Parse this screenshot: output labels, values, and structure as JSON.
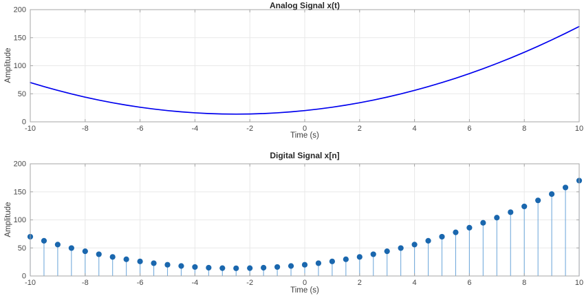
{
  "figure": {
    "background": "#ffffff",
    "axis_color": "#a6a6a6",
    "grid_color": "#e8e8e8",
    "tick_label_color": "#474747"
  },
  "chart_data": [
    {
      "type": "line",
      "title": "Analog Signal x(t)",
      "xlabel": "Time (s)",
      "ylabel": "Amplitude",
      "xlim": [
        -10,
        10
      ],
      "ylim": [
        0,
        200
      ],
      "xticks": [
        -10,
        -8,
        -6,
        -4,
        -2,
        0,
        2,
        4,
        6,
        8,
        10
      ],
      "yticks": [
        0,
        50,
        100,
        150,
        200
      ],
      "grid": true,
      "legend": "none",
      "line_color": "#0000ee",
      "x": [
        -10,
        -9.5,
        -9,
        -8.5,
        -8,
        -7.5,
        -7,
        -6.5,
        -6,
        -5.5,
        -5,
        -4.5,
        -4,
        -3.5,
        -3,
        -2.5,
        -2,
        -1.5,
        -1,
        -0.5,
        0,
        0.5,
        1,
        1.5,
        2,
        2.5,
        3,
        3.5,
        4,
        4.5,
        5,
        5.5,
        6,
        6.5,
        7,
        7.5,
        8,
        8.5,
        9,
        9.5,
        10
      ],
      "y": [
        70,
        62.75,
        56,
        49.75,
        44,
        38.75,
        34,
        29.75,
        26,
        22.75,
        20,
        17.75,
        16,
        14.75,
        14,
        13.75,
        14,
        14.75,
        16,
        17.75,
        20,
        22.75,
        26,
        29.75,
        34,
        38.75,
        44,
        49.75,
        56,
        62.75,
        70,
        77.75,
        86,
        94.75,
        104,
        113.75,
        124,
        134.75,
        146,
        157.75,
        170
      ]
    },
    {
      "type": "stem",
      "title": "Digital Signal x[n]",
      "xlabel": "Time (s)",
      "ylabel": "Amplitude",
      "xlim": [
        -10,
        10
      ],
      "ylim": [
        0,
        200
      ],
      "xticks": [
        -10,
        -8,
        -6,
        -4,
        -2,
        0,
        2,
        4,
        6,
        8,
        10
      ],
      "yticks": [
        0,
        50,
        100,
        150,
        200
      ],
      "grid": true,
      "legend": "none",
      "stem_color": "#74abdc",
      "marker_color": "#1a67ae",
      "x": [
        -10,
        -9.5,
        -9,
        -8.5,
        -8,
        -7.5,
        -7,
        -6.5,
        -6,
        -5.5,
        -5,
        -4.5,
        -4,
        -3.5,
        -3,
        -2.5,
        -2,
        -1.5,
        -1,
        -0.5,
        0,
        0.5,
        1,
        1.5,
        2,
        2.5,
        3,
        3.5,
        4,
        4.5,
        5,
        5.5,
        6,
        6.5,
        7,
        7.5,
        8,
        8.5,
        9,
        9.5,
        10
      ],
      "y": [
        70,
        62.75,
        56,
        49.75,
        44,
        38.75,
        34,
        29.75,
        26,
        22.75,
        20,
        17.75,
        16,
        14.75,
        14,
        13.75,
        14,
        14.75,
        16,
        17.75,
        20,
        22.75,
        26,
        29.75,
        34,
        38.75,
        44,
        49.75,
        56,
        62.75,
        70,
        77.75,
        86,
        94.75,
        104,
        113.75,
        124,
        134.75,
        146,
        157.75,
        170
      ]
    }
  ]
}
